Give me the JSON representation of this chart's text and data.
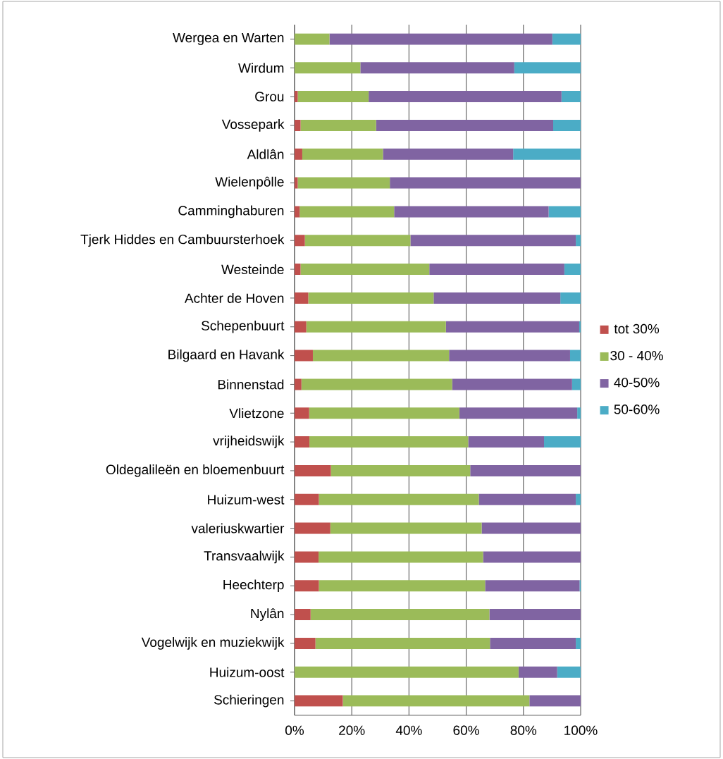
{
  "chart_data": {
    "type": "bar",
    "orientation": "horizontal",
    "stacked": true,
    "categories": [
      "Wergea en Warten",
      "Wirdum",
      "Grou",
      "Vossepark",
      "Aldlân",
      "Wielenpôlle",
      "Camminghaburen",
      "Tjerk Hiddes en Cambuursterhoek",
      "Westeinde",
      "Achter de Hoven",
      "Schepenbuurt",
      "Bilgaard en Havank",
      "Binnenstad",
      "Vlietzone",
      "vrijheidswijk",
      "Oldegalileën en bloemenbuurt",
      "Huizum-west",
      "valeriuskwartier",
      "Transvaalwijk",
      "Heechterp",
      "Nylân",
      "Vogelwijk en muziekwijk",
      "Huizum-oost",
      "Schieringen"
    ],
    "series": [
      {
        "name": "tot 30%",
        "color": "#c0504d",
        "values": [
          0,
          0,
          1.1,
          2.1,
          2.7,
          1.1,
          1.8,
          3.6,
          2.1,
          4.8,
          4.1,
          6.4,
          2.4,
          5.1,
          5.2,
          12.7,
          8.5,
          12.5,
          8.4,
          8.5,
          5.6,
          7.3,
          0,
          16.9
        ]
      },
      {
        "name": "30 - 40%",
        "color": "#9bbb59",
        "values": [
          12.2,
          23.0,
          24.8,
          26.4,
          28.2,
          32.2,
          33.0,
          36.9,
          45.0,
          43.8,
          48.8,
          47.6,
          52.7,
          52.5,
          55.5,
          48.7,
          55.9,
          52.9,
          57.5,
          58.1,
          62.5,
          61.0,
          78.3,
          65.2
        ]
      },
      {
        "name": "40-50%",
        "color": "#8064a2",
        "values": [
          77.9,
          53.8,
          67.4,
          61.9,
          45.5,
          66.7,
          54.0,
          57.8,
          47.2,
          44.3,
          46.6,
          42.3,
          41.9,
          41.2,
          26.5,
          38.6,
          33.9,
          34.6,
          34.1,
          33.0,
          31.9,
          30.0,
          13.5,
          17.9
        ]
      },
      {
        "name": "50-60%",
        "color": "#4bacc6",
        "values": [
          9.9,
          23.2,
          6.7,
          9.6,
          23.6,
          0,
          11.2,
          1.7,
          5.7,
          7.1,
          0.5,
          3.7,
          3.0,
          1.2,
          12.8,
          0,
          1.7,
          0,
          0,
          0.4,
          0,
          1.7,
          8.2,
          0
        ]
      }
    ],
    "xlim": [
      0,
      100
    ],
    "xticks": [
      {
        "value": 0,
        "label": "0%"
      },
      {
        "value": 20,
        "label": "20%"
      },
      {
        "value": 40,
        "label": "40%"
      },
      {
        "value": 60,
        "label": "60%"
      },
      {
        "value": 80,
        "label": "80%"
      },
      {
        "value": 100,
        "label": "100%"
      }
    ],
    "grid": "x",
    "legend": "right"
  }
}
